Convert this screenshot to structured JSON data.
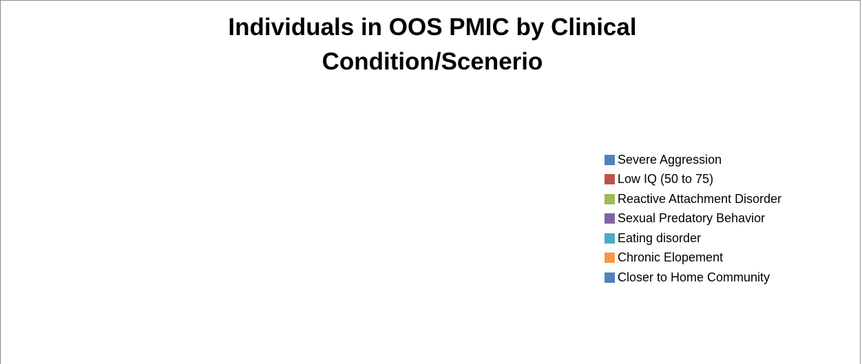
{
  "chart_data": {
    "type": "pie",
    "title": "Individuals in OOS PMIC by Clinical Condition/Scenerio",
    "categories": [
      "Severe Aggression",
      "Low IQ (50 to 75)",
      "Reactive Attachment Disorder",
      "Sexual Predatory Behavior",
      "Eating disorder",
      "Chronic Elopement",
      "Closer to Home Community"
    ],
    "colors": [
      "#4f81bd",
      "#c0504d",
      "#9bbb59",
      "#8064a2",
      "#4bacc6",
      "#f79646",
      "#4f81bd"
    ],
    "legend": "right"
  }
}
